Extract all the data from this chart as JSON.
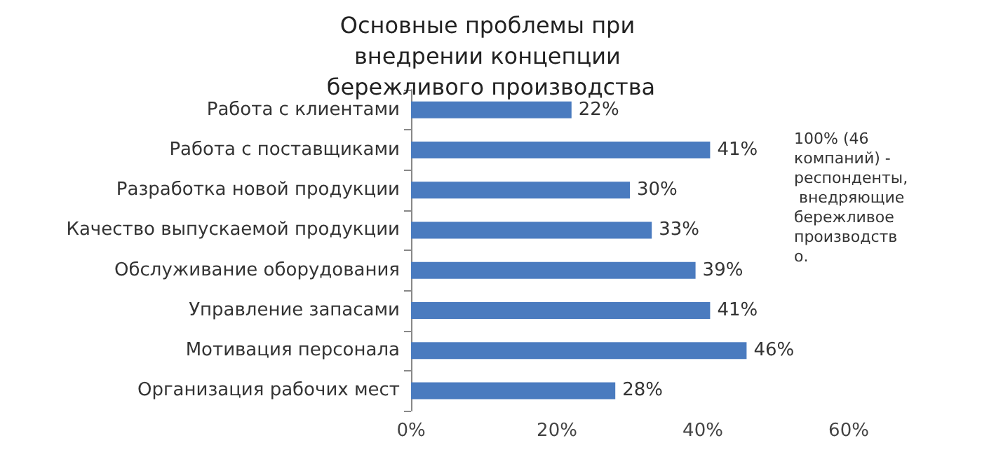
{
  "chart_data": {
    "type": "bar",
    "orientation": "horizontal",
    "title": "Основные проблемы при внедрении концепции бережливого производства",
    "categories": [
      "Работа с клиентами",
      "Работа с поставщиками",
      "Разработка новой продукции",
      "Качество выпускаемой продукции",
      "Обслуживание оборудования",
      "Управление запасами",
      "Мотивация персонала",
      "Организация рабочих мест"
    ],
    "values": [
      22,
      41,
      30,
      33,
      39,
      41,
      46,
      28
    ],
    "value_labels": [
      "22%",
      "41%",
      "30%",
      "33%",
      "39%",
      "41%",
      "46%",
      "28%"
    ],
    "color": "#4a7bbf",
    "xlim": [
      0,
      60
    ],
    "xticks": [
      {
        "value": 0,
        "label": "0%"
      },
      {
        "value": 20,
        "label": "20%"
      },
      {
        "value": 40,
        "label": "40%"
      },
      {
        "value": 60,
        "label": "60%"
      }
    ],
    "annotations": [
      "100% (46 компаний) - респонденты, внедряющие бережливое производство."
    ],
    "grid": false
  }
}
